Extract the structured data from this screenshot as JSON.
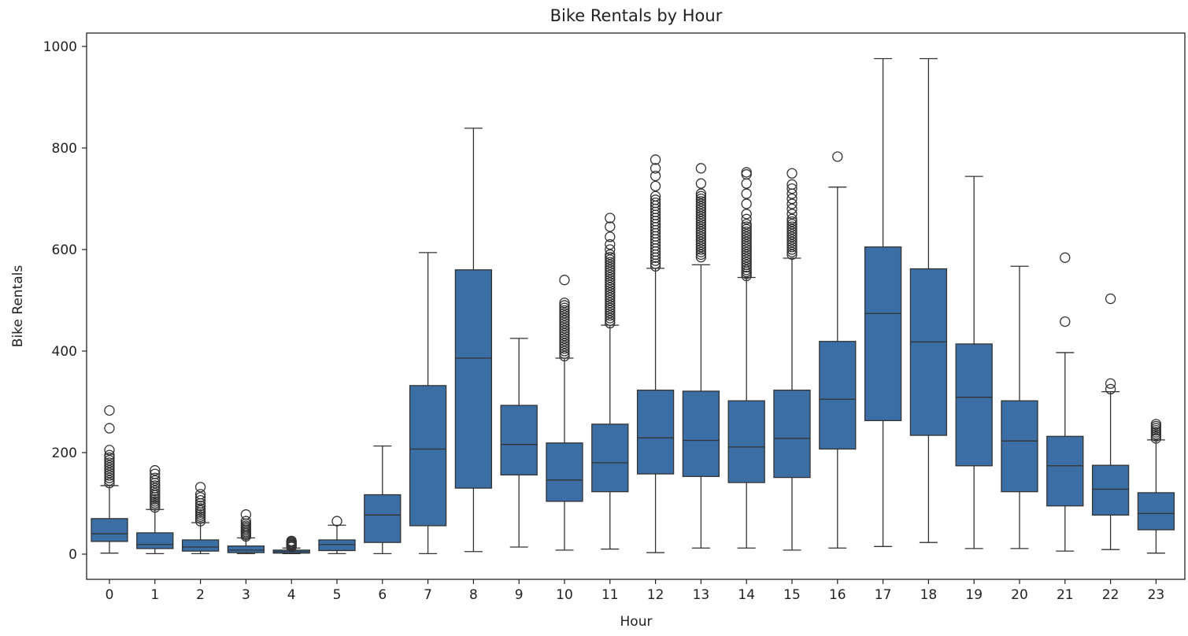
{
  "chart_data": {
    "type": "box",
    "title": "Bike Rentals by Hour",
    "xlabel": "Hour",
    "ylabel": "Bike Rentals",
    "ylim": [
      -50,
      1025
    ],
    "yticks": [
      0,
      200,
      400,
      600,
      800,
      1000
    ],
    "categories": [
      "0",
      "1",
      "2",
      "3",
      "4",
      "5",
      "6",
      "7",
      "8",
      "9",
      "10",
      "11",
      "12",
      "13",
      "14",
      "15",
      "16",
      "17",
      "18",
      "19",
      "20",
      "21",
      "22",
      "23"
    ],
    "box_color": "#3a6ea5",
    "edge_color": "#333333",
    "grid": false,
    "boxes": [
      {
        "hour": "0",
        "whisker_low": 2,
        "q1": 25,
        "median": 40,
        "q3": 70,
        "whisker_high": 135,
        "outliers": [
          140,
          145,
          150,
          155,
          160,
          165,
          170,
          175,
          180,
          185,
          190,
          195,
          205,
          248,
          283
        ]
      },
      {
        "hour": "1",
        "whisker_low": 1,
        "q1": 11,
        "median": 19,
        "q3": 42,
        "whisker_high": 88,
        "outliers": [
          92,
          96,
          100,
          104,
          108,
          112,
          116,
          120,
          125,
          130,
          135,
          140,
          145,
          150,
          158,
          165
        ]
      },
      {
        "hour": "2",
        "whisker_low": 1,
        "q1": 6,
        "median": 14,
        "q3": 28,
        "whisker_high": 62,
        "outliers": [
          65,
          70,
          74,
          78,
          82,
          86,
          90,
          95,
          100,
          106,
          112,
          118,
          132
        ]
      },
      {
        "hour": "3",
        "whisker_low": 1,
        "q1": 3,
        "median": 8,
        "q3": 16,
        "whisker_high": 32,
        "outliers": [
          35,
          38,
          41,
          44,
          47,
          50,
          53,
          56,
          60,
          65,
          78
        ]
      },
      {
        "hour": "4",
        "whisker_low": 1,
        "q1": 2,
        "median": 5,
        "q3": 8,
        "whisker_high": 12,
        "outliers": [
          14,
          16,
          18,
          20,
          22,
          24,
          26
        ]
      },
      {
        "hour": "5",
        "whisker_low": 1,
        "q1": 7,
        "median": 19,
        "q3": 28,
        "whisker_high": 57,
        "outliers": [
          65
        ]
      },
      {
        "hour": "6",
        "whisker_low": 1,
        "q1": 23,
        "median": 77,
        "q3": 117,
        "whisker_high": 213,
        "outliers": []
      },
      {
        "hour": "7",
        "whisker_low": 1,
        "q1": 56,
        "median": 207,
        "q3": 332,
        "whisker_high": 594,
        "outliers": []
      },
      {
        "hour": "8",
        "whisker_low": 5,
        "q1": 130,
        "median": 386,
        "q3": 560,
        "whisker_high": 839,
        "outliers": []
      },
      {
        "hour": "9",
        "whisker_low": 14,
        "q1": 156,
        "median": 216,
        "q3": 293,
        "whisker_high": 425,
        "outliers": []
      },
      {
        "hour": "10",
        "whisker_low": 8,
        "q1": 104,
        "median": 146,
        "q3": 219,
        "whisker_high": 386,
        "outliers": [
          390,
          395,
          400,
          405,
          410,
          415,
          420,
          425,
          430,
          435,
          440,
          445,
          450,
          455,
          460,
          465,
          470,
          475,
          480,
          485,
          490,
          495,
          540
        ]
      },
      {
        "hour": "11",
        "whisker_low": 10,
        "q1": 123,
        "median": 180,
        "q3": 256,
        "whisker_high": 451,
        "outliers": [
          455,
          460,
          465,
          470,
          475,
          480,
          485,
          490,
          495,
          500,
          505,
          510,
          515,
          520,
          525,
          530,
          535,
          540,
          545,
          550,
          555,
          560,
          565,
          570,
          575,
          580,
          585,
          590,
          600,
          610,
          625,
          645,
          662
        ]
      },
      {
        "hour": "12",
        "whisker_low": 3,
        "q1": 158,
        "median": 229,
        "q3": 323,
        "whisker_high": 563,
        "outliers": [
          567,
          572,
          578,
          584,
          590,
          596,
          602,
          608,
          614,
          620,
          626,
          632,
          638,
          644,
          650,
          656,
          662,
          668,
          674,
          680,
          686,
          692,
          698,
          705,
          725,
          745,
          760,
          777
        ]
      },
      {
        "hour": "13",
        "whisker_low": 12,
        "q1": 153,
        "median": 224,
        "q3": 321,
        "whisker_high": 570,
        "outliers": [
          585,
          590,
          595,
          600,
          605,
          610,
          615,
          620,
          625,
          630,
          635,
          640,
          645,
          650,
          655,
          660,
          665,
          670,
          675,
          680,
          685,
          690,
          695,
          700,
          705,
          710,
          730,
          760
        ]
      },
      {
        "hour": "14",
        "whisker_low": 12,
        "q1": 141,
        "median": 211,
        "q3": 302,
        "whisker_high": 545,
        "outliers": [
          548,
          552,
          556,
          560,
          565,
          570,
          575,
          580,
          585,
          590,
          595,
          600,
          605,
          610,
          615,
          620,
          625,
          630,
          635,
          640,
          645,
          650,
          660,
          670,
          690,
          710,
          730,
          748,
          752
        ]
      },
      {
        "hour": "15",
        "whisker_low": 8,
        "q1": 151,
        "median": 228,
        "q3": 323,
        "whisker_high": 583,
        "outliers": [
          590,
          595,
          600,
          605,
          610,
          615,
          620,
          625,
          630,
          635,
          640,
          645,
          650,
          655,
          660,
          670,
          680,
          690,
          700,
          710,
          720,
          728,
          750
        ]
      },
      {
        "hour": "16",
        "whisker_low": 12,
        "q1": 207,
        "median": 305,
        "q3": 419,
        "whisker_high": 723,
        "outliers": [
          783
        ]
      },
      {
        "hour": "17",
        "whisker_low": 15,
        "q1": 263,
        "median": 474,
        "q3": 605,
        "whisker_high": 976,
        "outliers": []
      },
      {
        "hour": "18",
        "whisker_low": 23,
        "q1": 234,
        "median": 418,
        "q3": 562,
        "whisker_high": 976,
        "outliers": []
      },
      {
        "hour": "19",
        "whisker_low": 11,
        "q1": 174,
        "median": 309,
        "q3": 414,
        "whisker_high": 744,
        "outliers": []
      },
      {
        "hour": "20",
        "whisker_low": 11,
        "q1": 123,
        "median": 223,
        "q3": 302,
        "whisker_high": 567,
        "outliers": []
      },
      {
        "hour": "21",
        "whisker_low": 6,
        "q1": 95,
        "median": 174,
        "q3": 232,
        "whisker_high": 397,
        "outliers": [
          458,
          584
        ]
      },
      {
        "hour": "22",
        "whisker_low": 9,
        "q1": 77,
        "median": 128,
        "q3": 175,
        "whisker_high": 320,
        "outliers": [
          325,
          336,
          503
        ]
      },
      {
        "hour": "23",
        "whisker_low": 2,
        "q1": 48,
        "median": 80,
        "q3": 121,
        "whisker_high": 225,
        "outliers": [
          228,
          232,
          236,
          240,
          244,
          248,
          252,
          256
        ]
      }
    ]
  }
}
